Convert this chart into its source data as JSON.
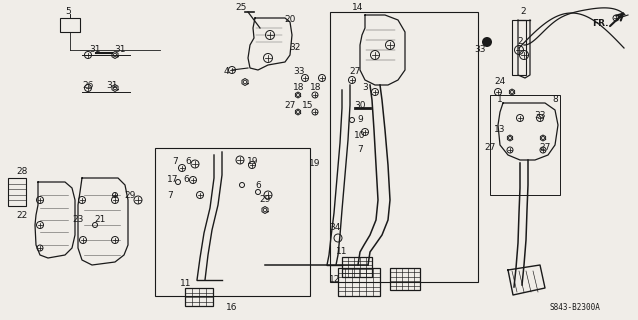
{
  "bg_color": "#f0ede8",
  "fg_color": "#1a1a1a",
  "figsize": [
    6.38,
    3.2
  ],
  "dpi": 100,
  "diagram_code": "S843-B2300A",
  "labels": {
    "fr": "FR.",
    "n2": "2",
    "n1": "1",
    "n5": "5",
    "n14": "14",
    "n24": "24",
    "n25": "25",
    "n20": "20",
    "n32": "32",
    "n33": "33",
    "n4": "4",
    "n31a": "31",
    "n31b": "31",
    "n31c": "31",
    "n26": "26",
    "n18a": "18",
    "n18b": "18",
    "n27a": "27",
    "n27b": "27",
    "n27c": "27",
    "n27d": "27",
    "n3": "3",
    "n15": "15",
    "n30": "30",
    "n9": "9",
    "n7a": "7",
    "n10": "10",
    "n19": "19",
    "n6a": "6",
    "n6b": "6",
    "n17": "17",
    "n7b": "7",
    "n11a": "11",
    "n11b": "11",
    "n16": "16",
    "n34": "34",
    "n12": "12",
    "n29": "29",
    "n28": "28",
    "n23": "23",
    "n22": "22",
    "n21": "21",
    "n8": "8",
    "n13": "13"
  }
}
